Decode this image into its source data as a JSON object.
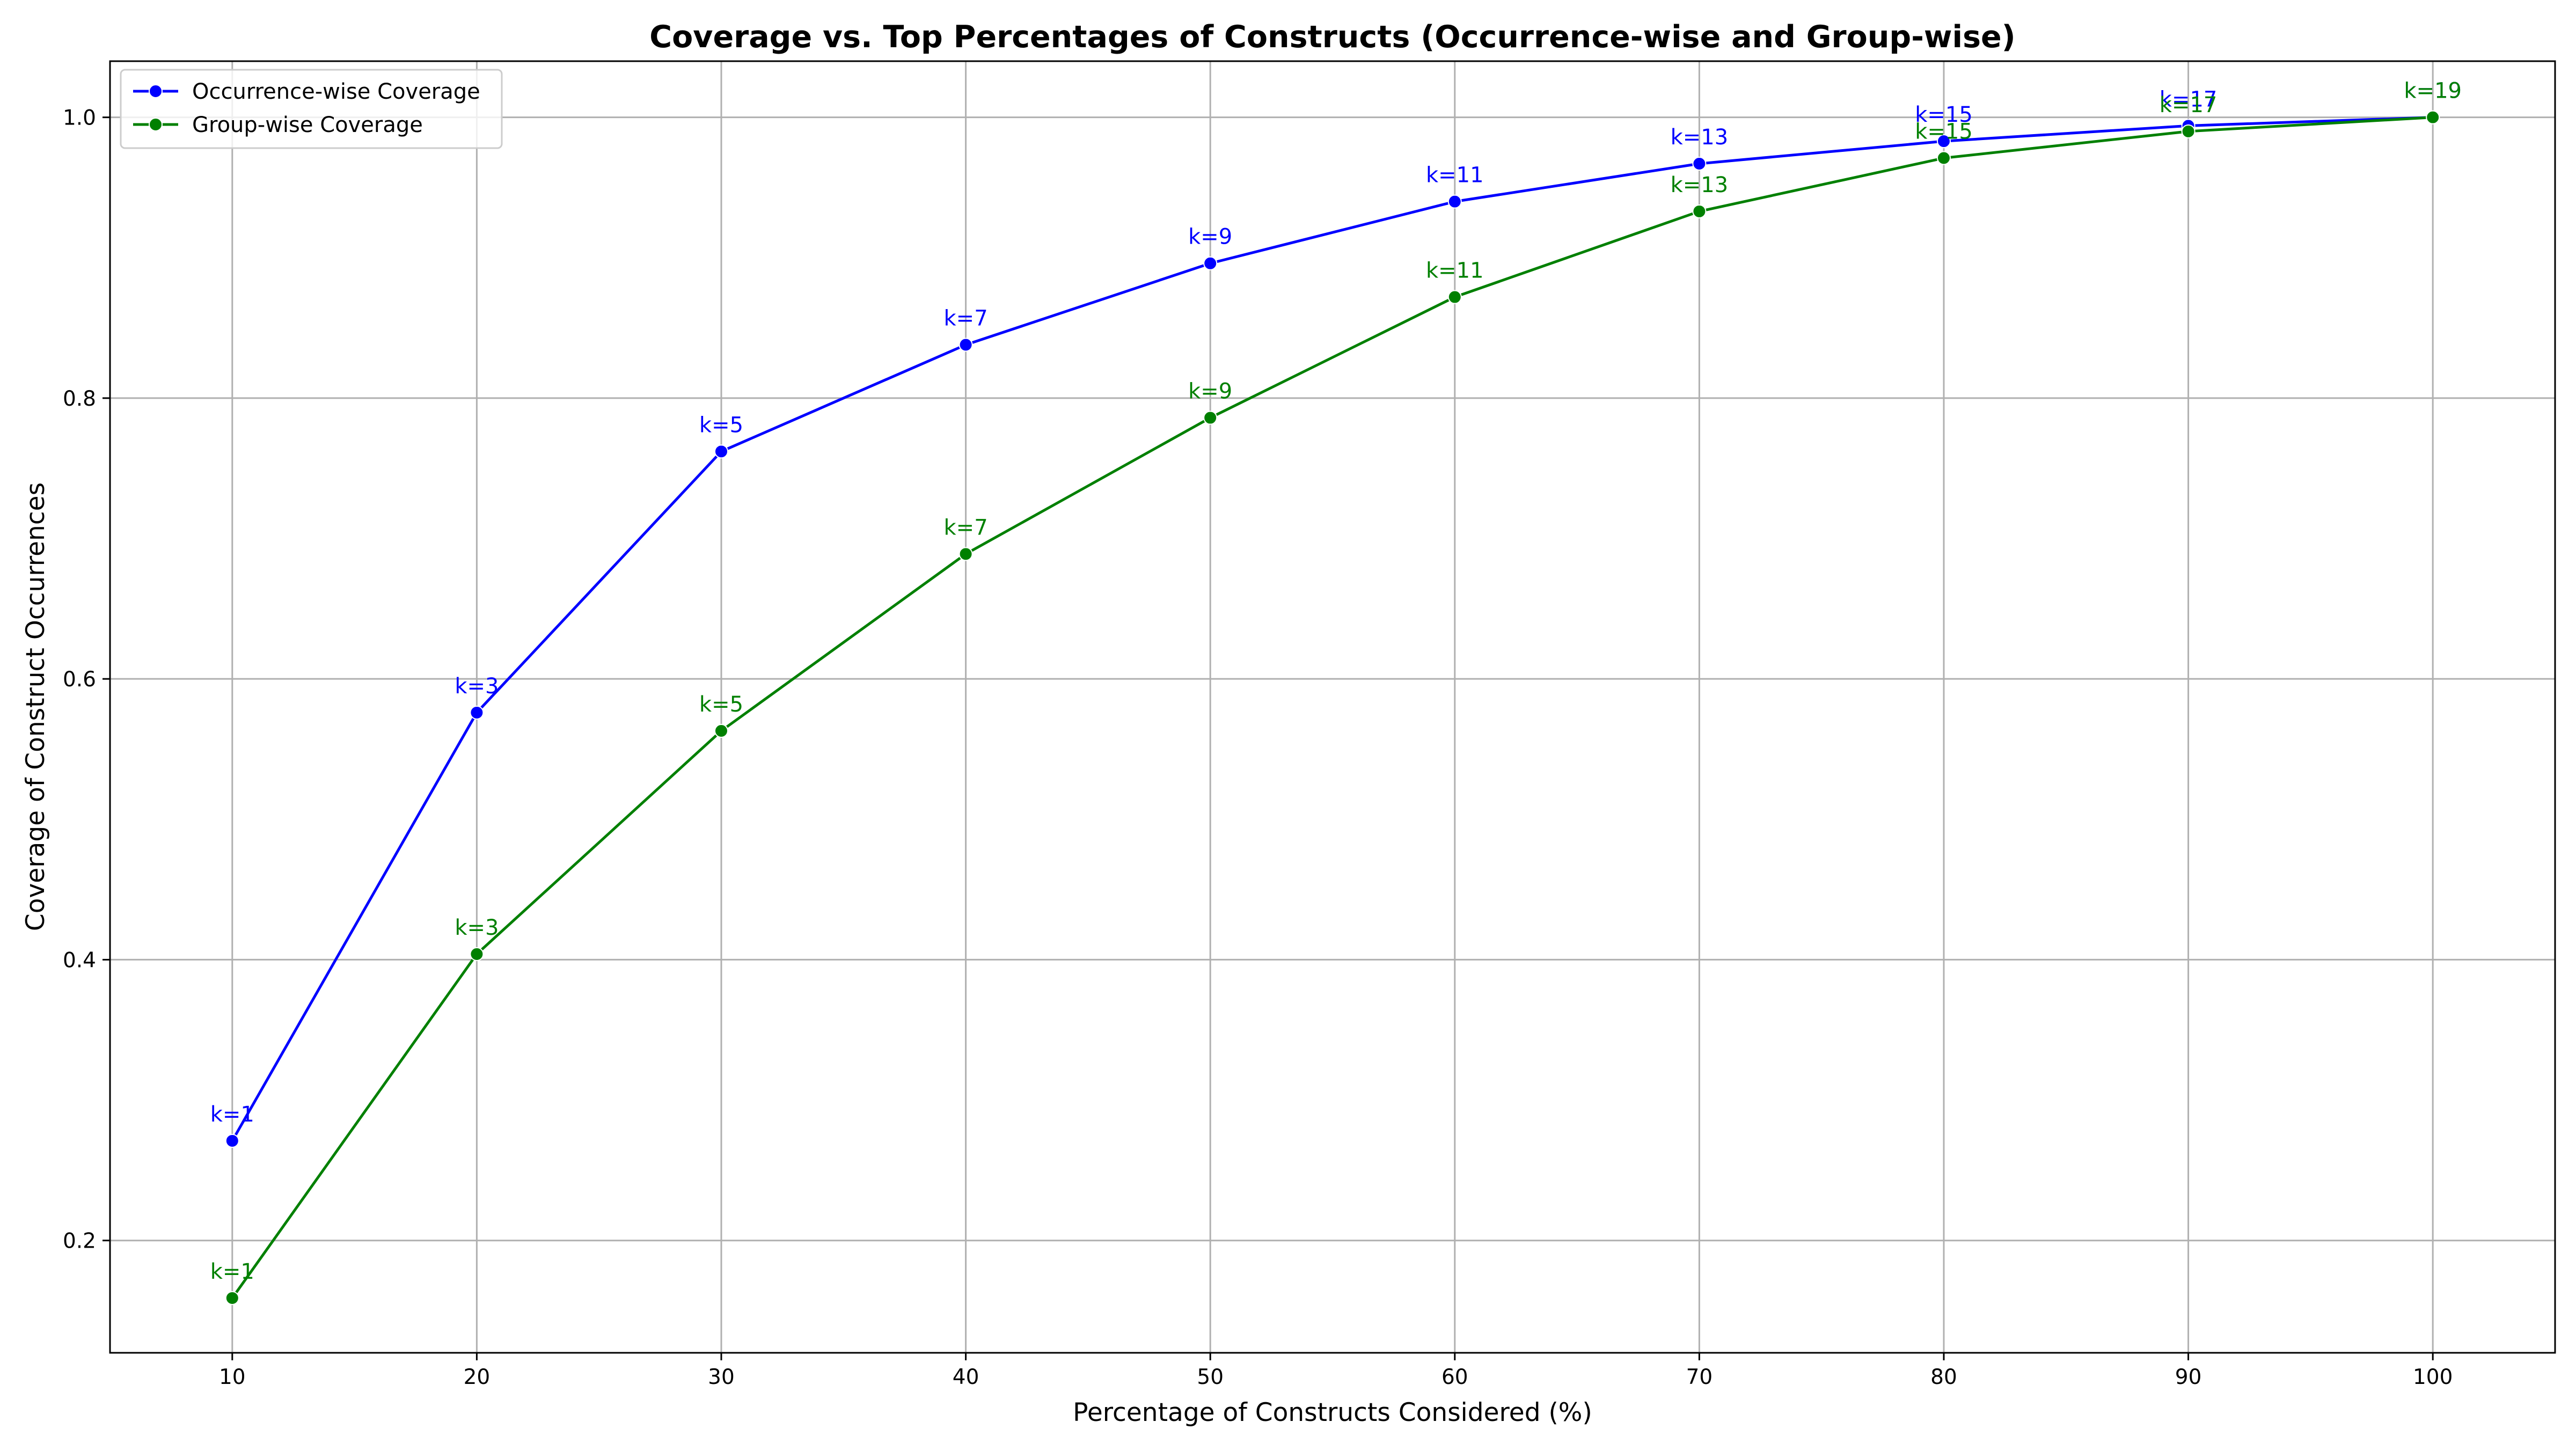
{
  "chart_data": {
    "type": "line",
    "title": "Coverage vs. Top Percentages of Constructs (Occurrence-wise and Group-wise)",
    "xlabel": "Percentage of Constructs Considered (%)",
    "ylabel": "Coverage of Construct Occurrences",
    "x": [
      10,
      20,
      30,
      40,
      50,
      60,
      70,
      80,
      90,
      100
    ],
    "xlim": [
      5,
      105
    ],
    "ylim": [
      0.12,
      1.04
    ],
    "xticks": [
      10,
      20,
      30,
      40,
      50,
      60,
      70,
      80,
      90,
      100
    ],
    "yticks": [
      0.2,
      0.4,
      0.6,
      0.8,
      1.0
    ],
    "ytick_labels": [
      "0.2",
      "0.4",
      "0.6",
      "0.8",
      "1.0"
    ],
    "grid": true,
    "legend_position": "top-left",
    "series": [
      {
        "name": "Occurrence-wise Coverage",
        "color": "#0000ff",
        "values": [
          0.271,
          0.576,
          0.762,
          0.838,
          0.896,
          0.94,
          0.967,
          0.983,
          0.994,
          1.0
        ],
        "point_labels": [
          "k=1",
          "k=3",
          "k=5",
          "k=7",
          "k=9",
          "k=11",
          "k=13",
          "k=15",
          "k=17",
          "k=19"
        ]
      },
      {
        "name": "Group-wise Coverage",
        "color": "#008000",
        "values": [
          0.159,
          0.404,
          0.563,
          0.689,
          0.786,
          0.872,
          0.933,
          0.971,
          0.99,
          1.0
        ],
        "point_labels": [
          "k=1",
          "k=3",
          "k=5",
          "k=7",
          "k=9",
          "k=11",
          "k=13",
          "k=15",
          "k=17",
          "k=19"
        ]
      }
    ]
  }
}
